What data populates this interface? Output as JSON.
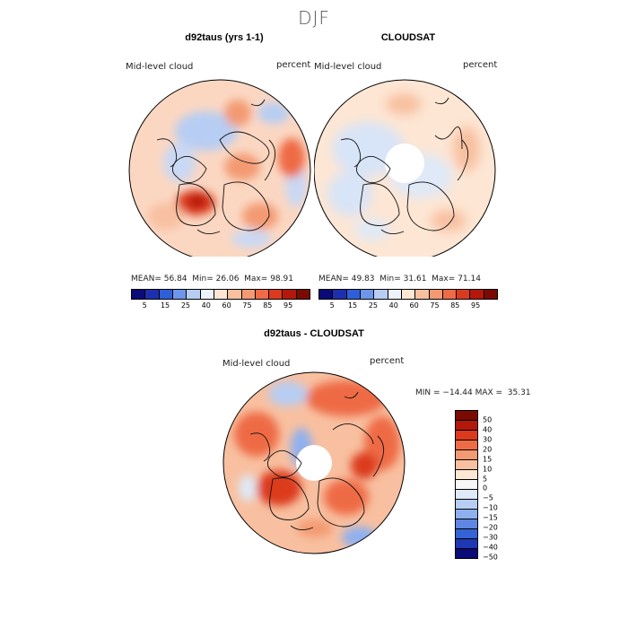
{
  "season": "DJF",
  "panels": [
    {
      "title": "d92taus (yrs 1-1)",
      "variable": "Mid-level cloud",
      "units": "percent",
      "mean_label": "MEAN=",
      "mean": "56.84",
      "min_label": "Min=",
      "min": "26.06",
      "max_label": "Max=",
      "max": "98.91",
      "colorbar_ticks": [
        "5",
        "15",
        "25",
        "40",
        "60",
        "75",
        "85",
        "95"
      ]
    },
    {
      "title": "CLOUDSAT",
      "variable": "Mid-level cloud",
      "units": "percent",
      "mean_label": "MEAN=",
      "mean": "49.83",
      "min_label": "Min=",
      "min": "31.61",
      "max_label": "Max=",
      "max": "71.14",
      "colorbar_ticks": [
        "5",
        "15",
        "25",
        "40",
        "60",
        "75",
        "85",
        "95"
      ]
    }
  ],
  "diff": {
    "title": "d92taus - CLOUDSAT",
    "variable": "Mid-level cloud",
    "units": "percent",
    "minmax_text": "MIN = −14.44 MAX =  35.31",
    "colorbar_ticks": [
      "50",
      "40",
      "30",
      "20",
      "15",
      "10",
      "5",
      "0",
      "−5",
      "−10",
      "−15",
      "−20",
      "−30",
      "−40",
      "−50"
    ]
  },
  "colors": {
    "abs_scale": [
      "#0a0a78",
      "#1e2fae",
      "#2f5fd8",
      "#6d96ea",
      "#b7cdf3",
      "#eef3fb",
      "#fde6d4",
      "#f8c0a0",
      "#f39a72",
      "#ee6b45",
      "#dc3a1e",
      "#b3180a",
      "#7a0a02"
    ],
    "diff_scale": [
      "#7a0a02",
      "#b3180a",
      "#dc3a1e",
      "#ee6b45",
      "#f39a72",
      "#f8c0a0",
      "#fde6d4",
      "#f7f7f7",
      "#dfe9f7",
      "#b7cdf3",
      "#8fb0ee",
      "#5e86e2",
      "#3563d5",
      "#1e38b2",
      "#0a0a78"
    ],
    "coast": "#111111"
  }
}
